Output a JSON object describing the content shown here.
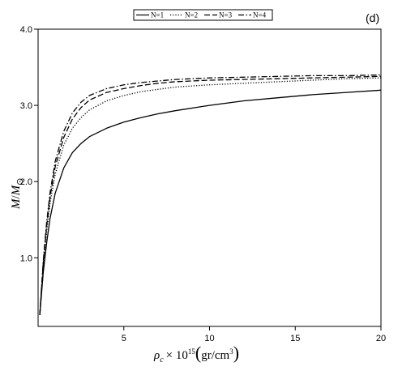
{
  "chart_data": {
    "type": "line",
    "panel_label": "(d)",
    "xlabel": {
      "prefix": "ρ",
      "subscript": "c",
      "times": "× 10",
      "exp": "15",
      "units": "gr/cm",
      "units_exp": "3"
    },
    "ylabel": {
      "num": "M",
      "slash": "/",
      "den": "M",
      "den_sub": "⊙"
    },
    "xlim": [
      0,
      20
    ],
    "ylim": [
      0.1,
      4.0
    ],
    "xticks": [
      5,
      10,
      15,
      20
    ],
    "xtick_labels": [
      "5",
      "10",
      "15",
      "20"
    ],
    "yticks": [
      1.0,
      2.0,
      3.0,
      4.0
    ],
    "ytick_labels": [
      "1.0",
      "2.0",
      "3.0",
      "4.0"
    ],
    "grid": false,
    "legend_position": "top",
    "x": [
      0.1,
      0.3,
      0.5,
      0.7,
      1.0,
      1.5,
      2.0,
      2.5,
      3.0,
      4.0,
      5.0,
      6.0,
      7.0,
      8.0,
      10.0,
      12.0,
      14.0,
      16.0,
      18.0,
      20.0
    ],
    "series": [
      {
        "name": "N=1",
        "dash": "solid",
        "values": [
          0.25,
          0.8,
          1.2,
          1.52,
          1.85,
          2.18,
          2.38,
          2.5,
          2.59,
          2.7,
          2.78,
          2.84,
          2.89,
          2.93,
          3.0,
          3.06,
          3.1,
          3.14,
          3.17,
          3.2
        ]
      },
      {
        "name": "N=2",
        "dash": "dotted",
        "values": [
          0.25,
          0.88,
          1.35,
          1.72,
          2.1,
          2.48,
          2.7,
          2.84,
          2.94,
          3.06,
          3.13,
          3.18,
          3.21,
          3.24,
          3.27,
          3.29,
          3.31,
          3.33,
          3.35,
          3.36
        ]
      },
      {
        "name": "N=3",
        "dash": "dashed",
        "values": [
          0.25,
          0.92,
          1.42,
          1.8,
          2.2,
          2.58,
          2.82,
          2.97,
          3.07,
          3.17,
          3.22,
          3.26,
          3.29,
          3.31,
          3.33,
          3.34,
          3.35,
          3.36,
          3.37,
          3.38
        ]
      },
      {
        "name": "N=4",
        "dash": "dashdot",
        "values": [
          0.25,
          0.95,
          1.47,
          1.86,
          2.27,
          2.66,
          2.9,
          3.04,
          3.13,
          3.22,
          3.27,
          3.3,
          3.32,
          3.34,
          3.36,
          3.37,
          3.38,
          3.39,
          3.39,
          3.4
        ]
      }
    ]
  }
}
